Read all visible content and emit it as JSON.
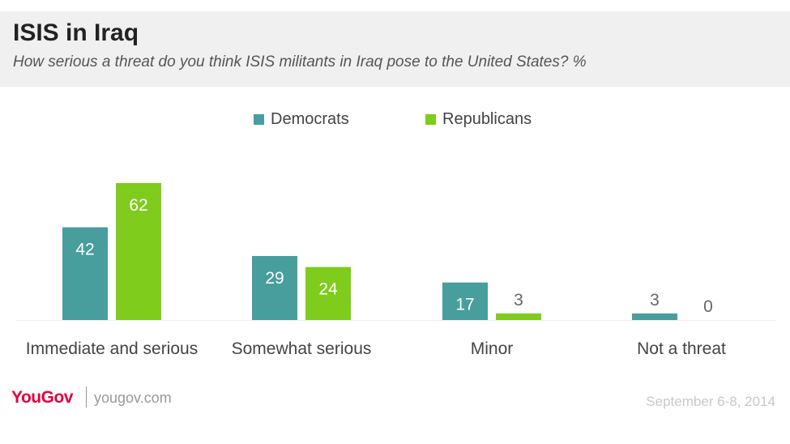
{
  "header": {
    "title": "ISIS in Iraq",
    "subtitle": "How serious a threat do you think ISIS militants in Iraq pose to the United States? %"
  },
  "footer": {
    "brand": "YouGov",
    "url": "yougov.com",
    "date": "September 6-8, 2014"
  },
  "colors": {
    "democrats": "#479e9d",
    "republicans": "#7fcc1c",
    "axis": "#eeeeee",
    "label_inside": "#ffffff",
    "label_outside": "#666666",
    "category_text": "#444444"
  },
  "chart_data": {
    "type": "bar",
    "title": "ISIS in Iraq",
    "subtitle": "How serious a threat do you think ISIS militants in Iraq pose to the United States? %",
    "categories": [
      "Immediate and serious",
      "Somewhat serious",
      "Minor",
      "Not a threat"
    ],
    "series": [
      {
        "name": "Democrats",
        "values": [
          42,
          29,
          17,
          3
        ]
      },
      {
        "name": "Republicans",
        "values": [
          62,
          24,
          3,
          0
        ]
      }
    ],
    "ylim": [
      0,
      62
    ],
    "grid": false,
    "legend": "top-center",
    "data_labels": true
  }
}
